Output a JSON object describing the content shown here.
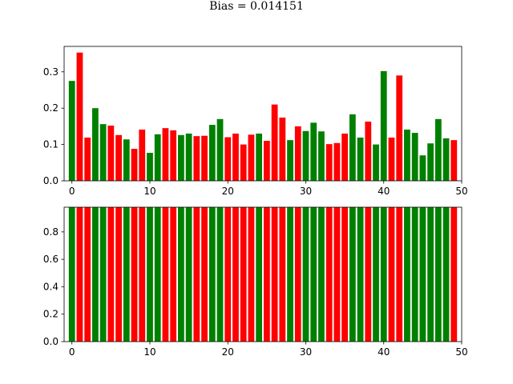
{
  "title": "Bias = 0.014151",
  "colors": {
    "green": "#008000",
    "red": "#ff0000"
  },
  "chart_data": [
    {
      "type": "bar",
      "x": [
        0,
        1,
        2,
        3,
        4,
        5,
        6,
        7,
        8,
        9,
        10,
        11,
        12,
        13,
        14,
        15,
        16,
        17,
        18,
        19,
        20,
        21,
        22,
        23,
        24,
        25,
        26,
        27,
        28,
        29,
        30,
        31,
        32,
        33,
        34,
        35,
        36,
        37,
        38,
        39,
        40,
        41,
        42,
        43,
        44,
        45,
        46,
        47,
        48,
        49
      ],
      "values": [
        0.275,
        0.353,
        0.119,
        0.2,
        0.156,
        0.152,
        0.126,
        0.114,
        0.088,
        0.141,
        0.077,
        0.128,
        0.145,
        0.139,
        0.126,
        0.13,
        0.123,
        0.124,
        0.154,
        0.17,
        0.12,
        0.13,
        0.1,
        0.127,
        0.13,
        0.11,
        0.21,
        0.174,
        0.112,
        0.15,
        0.137,
        0.16,
        0.136,
        0.101,
        0.104,
        0.13,
        0.183,
        0.119,
        0.163,
        0.1,
        0.302,
        0.119,
        0.29,
        0.141,
        0.132,
        0.07,
        0.103,
        0.17,
        0.117,
        0.112
      ],
      "bar_colors": [
        "green",
        "red",
        "red",
        "green",
        "green",
        "red",
        "red",
        "green",
        "red",
        "red",
        "green",
        "green",
        "red",
        "red",
        "green",
        "green",
        "red",
        "red",
        "green",
        "green",
        "red",
        "red",
        "red",
        "red",
        "green",
        "red",
        "red",
        "red",
        "green",
        "red",
        "green",
        "green",
        "green",
        "red",
        "red",
        "red",
        "green",
        "green",
        "red",
        "green",
        "green",
        "red",
        "red",
        "green",
        "green",
        "green",
        "green",
        "green",
        "green",
        "red"
      ],
      "xlim": [
        -1,
        50
      ],
      "ylim": [
        0,
        0.37
      ],
      "xticks": [
        0,
        10,
        20,
        30,
        40,
        50
      ],
      "xtick_labels": [
        "0",
        "10",
        "20",
        "30",
        "40",
        "50"
      ],
      "yticks": [
        0.0,
        0.1,
        0.2,
        0.3
      ],
      "ytick_labels": [
        "0.0",
        "0.1",
        "0.2",
        "0.3"
      ]
    },
    {
      "type": "bar",
      "x": [
        0,
        1,
        2,
        3,
        4,
        5,
        6,
        7,
        8,
        9,
        10,
        11,
        12,
        13,
        14,
        15,
        16,
        17,
        18,
        19,
        20,
        21,
        22,
        23,
        24,
        25,
        26,
        27,
        28,
        29,
        30,
        31,
        32,
        33,
        34,
        35,
        36,
        37,
        38,
        39,
        40,
        41,
        42,
        43,
        44,
        45,
        46,
        47,
        48,
        49
      ],
      "values": [
        1,
        1,
        1,
        1,
        1,
        1,
        1,
        1,
        1,
        1,
        1,
        1,
        1,
        1,
        1,
        1,
        1,
        1,
        1,
        1,
        1,
        1,
        1,
        1,
        1,
        1,
        1,
        1,
        1,
        1,
        1,
        1,
        1,
        1,
        1,
        1,
        1,
        1,
        1,
        1,
        1,
        1,
        1,
        1,
        1,
        1,
        1,
        1,
        1,
        1
      ],
      "bar_colors": [
        "green",
        "red",
        "red",
        "green",
        "green",
        "red",
        "red",
        "green",
        "red",
        "red",
        "green",
        "green",
        "red",
        "red",
        "green",
        "green",
        "red",
        "red",
        "green",
        "green",
        "red",
        "red",
        "red",
        "red",
        "green",
        "red",
        "red",
        "red",
        "green",
        "red",
        "green",
        "green",
        "green",
        "red",
        "red",
        "red",
        "green",
        "green",
        "red",
        "green",
        "green",
        "red",
        "red",
        "green",
        "green",
        "green",
        "green",
        "green",
        "green",
        "red"
      ],
      "xlim": [
        -1,
        50
      ],
      "ylim": [
        0,
        0.98
      ],
      "xticks": [
        0,
        10,
        20,
        30,
        40,
        50
      ],
      "xtick_labels": [
        "0",
        "10",
        "20",
        "30",
        "40",
        "50"
      ],
      "yticks": [
        0.0,
        0.2,
        0.4,
        0.6,
        0.8
      ],
      "ytick_labels": [
        "0.0",
        "0.2",
        "0.4",
        "0.6",
        "0.8"
      ]
    }
  ]
}
